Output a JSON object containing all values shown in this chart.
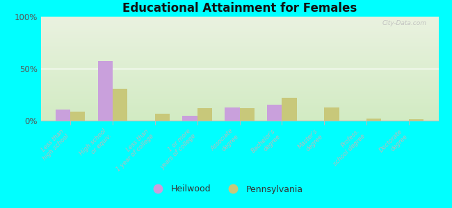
{
  "title": "Educational Attainment for Females",
  "categories": [
    "Less than\nhigh school",
    "High school\nor equiv.",
    "Less than\n1 year of college",
    "1 or more\nyears of college",
    "Associate\ndegree",
    "Bachelor's\ndegree",
    "Master's\ndegree",
    "Profess.\nschool degree",
    "Doctorate\ndegree"
  ],
  "heilwood": [
    10.5,
    57.5,
    0.0,
    5.0,
    12.5,
    15.5,
    0.0,
    0.0,
    0.0
  ],
  "pennsylvania": [
    8.5,
    31.0,
    7.0,
    12.0,
    12.0,
    22.0,
    12.5,
    2.0,
    1.5
  ],
  "heilwood_color": "#c9a0dc",
  "pennsylvania_color": "#c8c87a",
  "bg_outer": "#00ffff",
  "bg_plot_top": "#eaf2e0",
  "bg_plot_bot": "#d8eecc",
  "ylim": [
    0,
    100
  ],
  "ytick_labels": [
    "0%",
    "50%",
    "100%"
  ],
  "watermark": "City-Data.com",
  "bar_width": 0.35,
  "tick_color": "#99aaaa",
  "label_color": "#99aaaa"
}
